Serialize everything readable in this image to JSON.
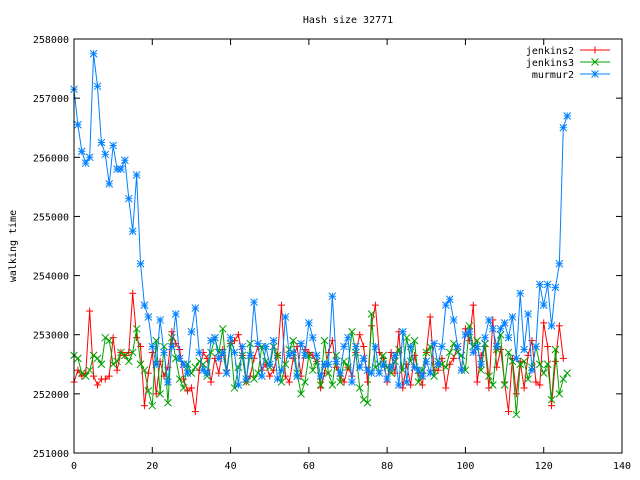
{
  "chart_data": {
    "type": "line",
    "title": "Hash size 32771",
    "xlabel": "",
    "ylabel": "walking time",
    "xlim": [
      0,
      140
    ],
    "ylim": [
      251000,
      258000
    ],
    "x_ticks": [
      0,
      20,
      40,
      60,
      80,
      100,
      120,
      140
    ],
    "y_ticks": [
      251000,
      252000,
      253000,
      254000,
      255000,
      256000,
      257000,
      258000
    ],
    "grid": false,
    "legend_position": "top-right",
    "series": [
      {
        "name": "jenkins2",
        "color": "#ff0000",
        "marker": "plus",
        "values": [
          252200,
          252400,
          252300,
          252350,
          253400,
          252300,
          252150,
          252250,
          252250,
          252300,
          252950,
          252400,
          252700,
          252650,
          252700,
          253700,
          252950,
          252800,
          251800,
          252350,
          252700,
          252000,
          252550,
          252300,
          252450,
          253050,
          252850,
          252750,
          252250,
          252050,
          252100,
          251700,
          252400,
          252700,
          252600,
          252200,
          252600,
          252350,
          252750,
          252400,
          252850,
          252900,
          253000,
          252650,
          252200,
          252300,
          252600,
          252800,
          252400,
          252500,
          252300,
          252400,
          252650,
          253500,
          252300,
          252200,
          252600,
          252800,
          252300,
          252750,
          252700,
          252650,
          252550,
          252100,
          252350,
          252700,
          252900,
          252450,
          252300,
          252200,
          252450,
          252300,
          252700,
          253000,
          252800,
          252200,
          253150,
          253500,
          252700,
          252600,
          252200,
          252700,
          252350,
          253050,
          252100,
          252500,
          252150,
          252650,
          252350,
          252150,
          252700,
          253300,
          252400,
          252400,
          252600,
          252100,
          252500,
          252600,
          252800,
          252400,
          253100,
          252900,
          253500,
          252200,
          252650,
          252800,
          252100,
          253250,
          252450,
          252750,
          252200,
          251700,
          252600,
          252000,
          252550,
          252100,
          252650,
          252900,
          252200,
          252150,
          253200,
          252800,
          251800,
          252550,
          253150,
          252600
        ]
      },
      {
        "name": "jenkins3",
        "color": "#00a000",
        "marker": "cross",
        "values": [
          252650,
          252600,
          252350,
          252300,
          252400,
          252650,
          252600,
          252500,
          252950,
          252900,
          252500,
          252550,
          252700,
          252650,
          252550,
          252700,
          253100,
          252500,
          252400,
          252050,
          251800,
          252900,
          252000,
          252800,
          251850,
          252950,
          252600,
          252250,
          252100,
          252500,
          252350,
          252450,
          252550,
          252500,
          252300,
          252700,
          252950,
          252700,
          253100,
          252350,
          252850,
          252100,
          252450,
          252650,
          252200,
          252850,
          252250,
          252350,
          252800,
          252550,
          252450,
          252800,
          252650,
          252200,
          252500,
          252750,
          252900,
          252350,
          252000,
          252200,
          252650,
          252400,
          252550,
          252150,
          252900,
          252350,
          252150,
          252650,
          252200,
          252550,
          252450,
          253050,
          252700,
          252100,
          251900,
          251850,
          253350,
          252450,
          252500,
          252650,
          252450,
          252350,
          252550,
          252750,
          252400,
          252950,
          252550,
          252900,
          252200,
          252400,
          252700,
          252800,
          252300,
          252550,
          252500,
          252450,
          252700,
          252850,
          252700,
          252650,
          252400,
          253150,
          252800,
          252900,
          252400,
          252850,
          252300,
          252150,
          252750,
          253000,
          252150,
          252700,
          252550,
          251650,
          252500,
          252550,
          252250,
          252450,
          252800,
          252500,
          252350,
          252500,
          251900,
          252750,
          252000,
          252250,
          252350
        ]
      },
      {
        "name": "murmur2",
        "color": "#0080ff",
        "marker": "star",
        "values": [
          257150,
          256550,
          256100,
          255900,
          256000,
          257750,
          257200,
          256250,
          256050,
          255550,
          256200,
          255800,
          255800,
          255950,
          255300,
          254750,
          255700,
          254200,
          253500,
          253300,
          252800,
          252500,
          253250,
          252700,
          252200,
          252800,
          253350,
          252600,
          252500,
          252350,
          253050,
          253450,
          252700,
          252400,
          252350,
          252900,
          252950,
          252600,
          252700,
          252350,
          252950,
          252700,
          252150,
          252800,
          252250,
          252650,
          253550,
          252850,
          252300,
          252800,
          252500,
          252900,
          252250,
          252400,
          253300,
          252650,
          252700,
          252300,
          252850,
          252650,
          253200,
          252950,
          252650,
          252300,
          252500,
          252500,
          253650,
          252550,
          252350,
          252800,
          252950,
          252200,
          252800,
          252450,
          252600,
          252400,
          252350,
          252800,
          252350,
          252500,
          252250,
          252450,
          252650,
          252150,
          253050,
          252200,
          252800,
          252450,
          252400,
          252300,
          252550,
          252350,
          252850,
          252500,
          252800,
          253500,
          253600,
          253250,
          252800,
          252400,
          253000,
          253050,
          252700,
          252800,
          252500,
          252950,
          253250,
          253100,
          252800,
          253100,
          253200,
          252950,
          253300,
          252600,
          253700,
          252750,
          253350,
          252400,
          252800,
          253850,
          253500,
          253850,
          253150,
          253800,
          254200,
          256500,
          256700
        ]
      }
    ]
  }
}
